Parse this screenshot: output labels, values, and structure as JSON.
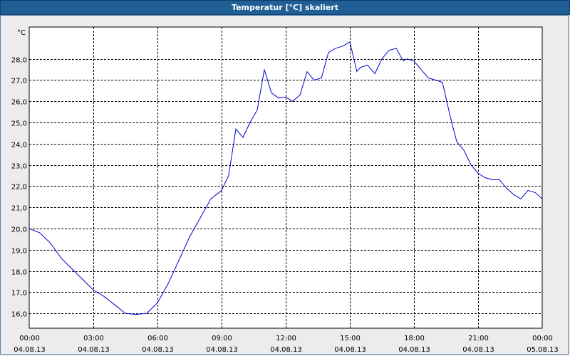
{
  "window": {
    "title": "Temperatur [°C] skaliert"
  },
  "colors": {
    "line": "#0000cc",
    "grid": "#000000",
    "plot_bg": "#ffffff",
    "title_bg": "#1f5f95"
  },
  "chart_data": {
    "type": "line",
    "title": "Temperatur [°C] skaliert",
    "ylabel": "°C",
    "xlabel": "",
    "ylim": [
      15.3,
      29.5
    ],
    "xlim": [
      0,
      24
    ],
    "grid": true,
    "y_ticks": [
      "16,0",
      "17,0",
      "18,0",
      "19,0",
      "20,0",
      "21,0",
      "22,0",
      "23,0",
      "24,0",
      "25,0",
      "26,0",
      "27,0",
      "28,0"
    ],
    "y_tick_values": [
      16,
      17,
      18,
      19,
      20,
      21,
      22,
      23,
      24,
      25,
      26,
      27,
      28
    ],
    "x_ticks": [
      {
        "time": "00:00",
        "date": "04.08.13"
      },
      {
        "time": "03:00",
        "date": "04.08.13"
      },
      {
        "time": "06:00",
        "date": "04.08.13"
      },
      {
        "time": "09:00",
        "date": "04.08.13"
      },
      {
        "time": "12:00",
        "date": "04.08.13"
      },
      {
        "time": "15:00",
        "date": "04.08.13"
      },
      {
        "time": "18:00",
        "date": "04.08.13"
      },
      {
        "time": "21:00",
        "date": "04.08.13"
      },
      {
        "time": "00:00",
        "date": "05.08.13"
      }
    ],
    "x_tick_hours": [
      0,
      3,
      6,
      9,
      12,
      15,
      18,
      21,
      24
    ],
    "series": [
      {
        "x": [
          0,
          0.5,
          1.0,
          1.5,
          2.0,
          2.5,
          3.0,
          3.5,
          4.0,
          4.5,
          5.0,
          5.5,
          6.0,
          6.5,
          7.0,
          7.5,
          8.0,
          8.5,
          9.0,
          9.33,
          9.67,
          10.0,
          10.33,
          10.67,
          11.0,
          11.33,
          11.67,
          12.0,
          12.33,
          12.67,
          13.0,
          13.33,
          13.67,
          14.0,
          14.33,
          14.67,
          15.0,
          15.33,
          15.5,
          15.83,
          16.17,
          16.5,
          16.83,
          17.17,
          17.5,
          17.67,
          18.0,
          18.33,
          18.67,
          19.0,
          19.33,
          19.67,
          20.0,
          20.33,
          20.67,
          21.0,
          21.33,
          21.67,
          22.0,
          22.33,
          22.67,
          23.0,
          23.33,
          23.67,
          24.0
        ],
        "y": [
          20.0,
          19.8,
          19.3,
          18.6,
          18.1,
          17.6,
          17.1,
          16.8,
          16.4,
          16.0,
          15.95,
          16.0,
          16.5,
          17.4,
          18.5,
          19.6,
          20.5,
          21.4,
          21.8,
          22.5,
          24.7,
          24.3,
          25.0,
          25.6,
          27.5,
          26.4,
          26.15,
          26.2,
          26.0,
          26.3,
          27.4,
          27.0,
          27.1,
          28.3,
          28.5,
          28.6,
          28.8,
          27.4,
          27.6,
          27.7,
          27.3,
          28.0,
          28.4,
          28.5,
          27.9,
          28.0,
          27.9,
          27.5,
          27.1,
          27.0,
          26.9,
          25.4,
          24.1,
          23.7,
          23.0,
          22.6,
          22.4,
          22.3,
          22.3,
          21.9,
          21.6,
          21.4,
          21.8,
          21.7,
          21.4
        ]
      }
    ]
  }
}
